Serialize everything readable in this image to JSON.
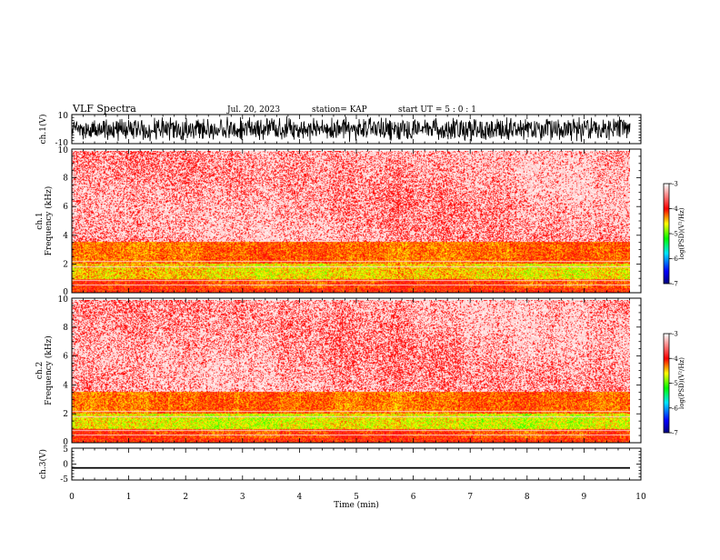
{
  "header": {
    "title": "VLF Spectra",
    "date": "Jul. 20, 2023",
    "station": "station= KAP",
    "start": "start UT =  5 : 0 : 1"
  },
  "chart_data": [
    {
      "type": "line",
      "name": "ch1-waveform",
      "ylabel": "ch.1(V)",
      "ylim": [
        -10,
        10
      ],
      "yticks": [
        "10",
        "-10"
      ],
      "x_range_min": [
        0,
        9.83
      ],
      "amplitude_range": [
        -10,
        10
      ]
    },
    {
      "type": "heatmap",
      "name": "ch1-spectrogram",
      "ylabel": "ch.1\nFrequency (kHz)",
      "ylim": [
        0,
        10
      ],
      "yticks": [
        "0",
        "2",
        "4",
        "6",
        "8",
        "10"
      ],
      "x_range_min": [
        0,
        9.83
      ],
      "colorbar": {
        "label": "log(PSD)(V²/Hz)",
        "range": [
          -7,
          -3
        ],
        "ticks": [
          "-3",
          "-4",
          "-5",
          "-6",
          "-7"
        ]
      },
      "colors": [
        "#0000cc",
        "#00ddff",
        "#00ff00",
        "#ffff00",
        "#ff0000",
        "#ffffff"
      ]
    },
    {
      "type": "heatmap",
      "name": "ch2-spectrogram",
      "ylabel": "ch.2\nFrequency (kHz)",
      "ylim": [
        0,
        10
      ],
      "yticks": [
        "0",
        "2",
        "4",
        "6",
        "8",
        "10"
      ],
      "x_range_min": [
        0,
        9.83
      ],
      "colorbar": {
        "label": "log(PSD)(V²/Hz)",
        "range": [
          -7,
          -3
        ],
        "ticks": [
          "-3",
          "-4",
          "-5",
          "-6",
          "-7"
        ]
      },
      "colors": [
        "#0000cc",
        "#00ddff",
        "#00ff00",
        "#ffff00",
        "#ff0000",
        "#ffffff"
      ]
    },
    {
      "type": "line",
      "name": "ch3-waveform",
      "ylabel": "ch.3(V)",
      "ylim": [
        -5,
        5
      ],
      "yticks": [
        "5",
        "0",
        "-5"
      ],
      "x_range_min": [
        0,
        9.83
      ],
      "level": -1.2,
      "amplitude": 0.25
    }
  ],
  "xaxis": {
    "label": "Time (min)",
    "ticks": [
      "0",
      "1",
      "2",
      "3",
      "4",
      "5",
      "6",
      "7",
      "8",
      "9",
      "10"
    ],
    "range": [
      0,
      10
    ]
  }
}
